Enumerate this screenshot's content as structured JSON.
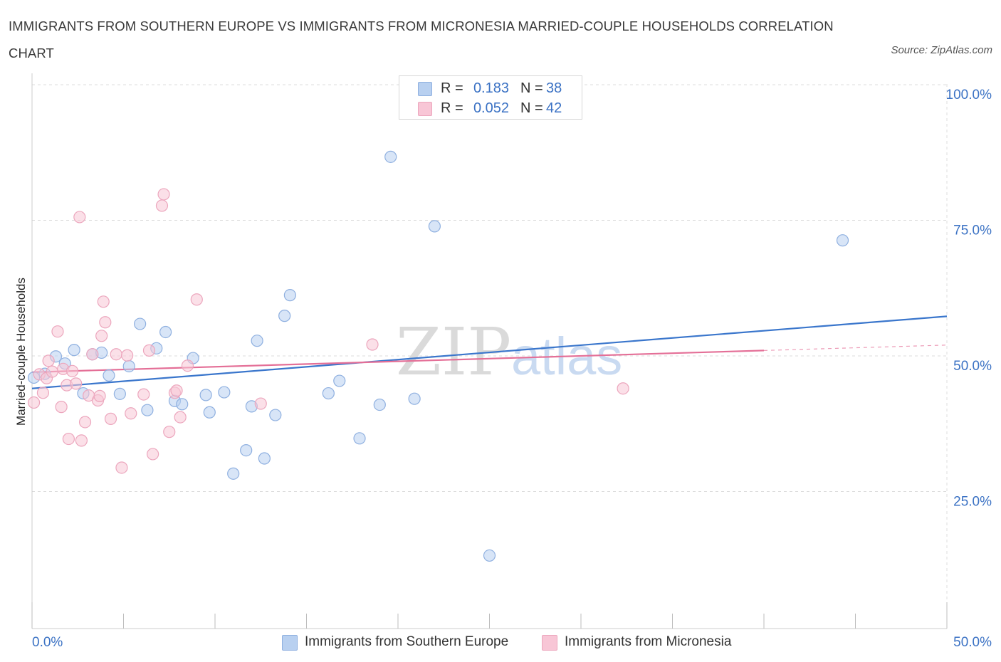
{
  "header": {
    "title": "IMMIGRANTS FROM SOUTHERN EUROPE VS IMMIGRANTS FROM MICRONESIA MARRIED-COUPLE HOUSEHOLDS CORRELATION CHART",
    "source": "Source: ZipAtlas.com"
  },
  "watermark": {
    "zip": "ZIP",
    "atlas": "atlas"
  },
  "legend": {
    "r_label": "R =",
    "n_label": "N =",
    "blue": {
      "r": "0.183",
      "n": "38"
    },
    "pink": {
      "r": "0.052",
      "n": "42"
    }
  },
  "colors": {
    "blue_fill": "#b8d0f0",
    "blue_stroke": "#8fb0e0",
    "blue_line": "#3a76cc",
    "pink_fill": "#f8c6d6",
    "pink_stroke": "#eca6bd",
    "pink_line": "#e46f97",
    "axis_text": "#3b72c4",
    "grid": "#dcdcdc"
  },
  "chart_data": {
    "type": "scatter",
    "title": "IMMIGRANTS FROM SOUTHERN EUROPE VS IMMIGRANTS FROM MICRONESIA MARRIED-COUPLE HOUSEHOLDS CORRELATION CHART",
    "xlabel": "",
    "ylabel": "Married-couple Households",
    "xlim": [
      0,
      50
    ],
    "ylim": [
      0,
      100
    ],
    "x_tick_labels": [
      "0.0%",
      "50.0%"
    ],
    "y_ticks": [
      {
        "value": 100,
        "label": "100.0%"
      },
      {
        "value": 75,
        "label": "75.0%"
      },
      {
        "value": 50,
        "label": "50.0%"
      },
      {
        "value": 25,
        "label": "25.0%"
      }
    ],
    "legend_position": "bottom",
    "series": [
      {
        "name": "Immigrants from Southern Europe",
        "color": "blue",
        "trend": {
          "x": [
            0,
            50
          ],
          "y": [
            44.0,
            57.3
          ]
        },
        "points": [
          [
            0.1,
            46.0
          ],
          [
            0.7,
            46.7
          ],
          [
            1.3,
            49.9
          ],
          [
            1.8,
            48.6
          ],
          [
            2.3,
            51.1
          ],
          [
            2.8,
            43.1
          ],
          [
            3.3,
            50.3
          ],
          [
            3.8,
            50.6
          ],
          [
            4.2,
            46.4
          ],
          [
            4.8,
            43.0
          ],
          [
            5.3,
            48.1
          ],
          [
            5.9,
            55.9
          ],
          [
            6.3,
            40.0
          ],
          [
            6.8,
            51.4
          ],
          [
            7.3,
            54.4
          ],
          [
            7.8,
            41.7
          ],
          [
            8.2,
            41.1
          ],
          [
            8.8,
            49.6
          ],
          [
            9.5,
            42.8
          ],
          [
            9.7,
            39.6
          ],
          [
            10.5,
            43.3
          ],
          [
            11.0,
            28.3
          ],
          [
            11.7,
            32.6
          ],
          [
            12.0,
            40.7
          ],
          [
            12.3,
            52.8
          ],
          [
            12.7,
            31.1
          ],
          [
            13.3,
            39.1
          ],
          [
            13.8,
            57.4
          ],
          [
            14.1,
            61.2
          ],
          [
            16.2,
            43.1
          ],
          [
            16.8,
            45.4
          ],
          [
            17.9,
            34.8
          ],
          [
            19.0,
            41.0
          ],
          [
            19.6,
            86.7
          ],
          [
            20.9,
            42.1
          ],
          [
            22.0,
            73.9
          ],
          [
            25.0,
            13.2
          ],
          [
            44.3,
            71.3
          ]
        ]
      },
      {
        "name": "Immigrants from Micronesia",
        "color": "pink",
        "trend": {
          "x": [
            0,
            40
          ],
          "y": [
            47.0,
            51.0
          ],
          "dashed_to": [
            50,
            52.0
          ]
        },
        "points": [
          [
            0.1,
            41.4
          ],
          [
            0.4,
            46.6
          ],
          [
            0.6,
            43.2
          ],
          [
            0.8,
            45.9
          ],
          [
            0.9,
            49.1
          ],
          [
            1.1,
            47.1
          ],
          [
            1.4,
            54.5
          ],
          [
            1.6,
            40.6
          ],
          [
            1.7,
            47.6
          ],
          [
            1.9,
            44.6
          ],
          [
            2.0,
            34.7
          ],
          [
            2.2,
            47.2
          ],
          [
            2.4,
            44.9
          ],
          [
            2.6,
            75.6
          ],
          [
            2.7,
            34.4
          ],
          [
            2.9,
            37.8
          ],
          [
            3.1,
            42.7
          ],
          [
            3.3,
            50.3
          ],
          [
            3.6,
            41.8
          ],
          [
            3.8,
            53.7
          ],
          [
            3.9,
            60.0
          ],
          [
            4.0,
            56.2
          ],
          [
            4.3,
            38.4
          ],
          [
            4.6,
            50.3
          ],
          [
            4.9,
            29.4
          ],
          [
            5.2,
            50.1
          ],
          [
            5.4,
            39.4
          ],
          [
            6.1,
            42.9
          ],
          [
            6.4,
            51.0
          ],
          [
            6.6,
            31.9
          ],
          [
            7.1,
            77.7
          ],
          [
            7.2,
            79.8
          ],
          [
            7.5,
            36.0
          ],
          [
            7.8,
            43.2
          ],
          [
            7.9,
            43.6
          ],
          [
            8.1,
            38.7
          ],
          [
            8.5,
            48.2
          ],
          [
            9.0,
            60.4
          ],
          [
            12.5,
            41.2
          ],
          [
            18.6,
            52.1
          ],
          [
            32.3,
            44.0
          ],
          [
            3.7,
            42.6
          ]
        ]
      }
    ]
  },
  "bottom_legend": {
    "blue_label": "Immigrants from Southern Europe",
    "pink_label": "Immigrants from Micronesia"
  }
}
